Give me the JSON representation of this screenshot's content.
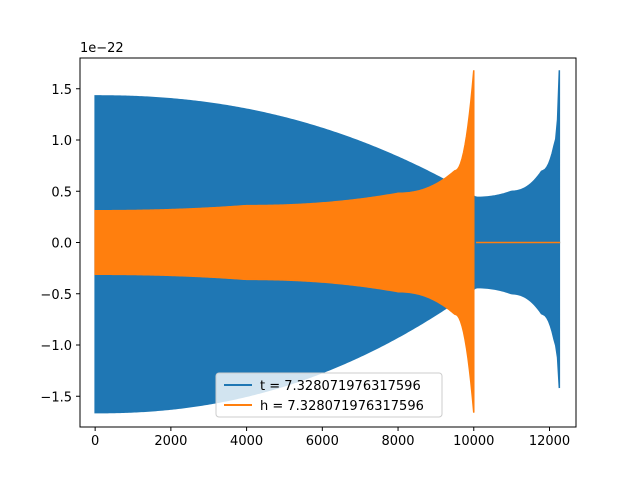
{
  "chart_data": {
    "type": "line",
    "title": "",
    "xlabel": "",
    "ylabel": "",
    "y_offset_label": "1e−22",
    "xlim": [
      -400,
      12700
    ],
    "ylim": [
      -1.8,
      1.8
    ],
    "x_ticks": [
      0,
      2000,
      4000,
      6000,
      8000,
      10000,
      12000
    ],
    "x_tick_labels": [
      "0",
      "2000",
      "4000",
      "6000",
      "8000",
      "10000",
      "12000"
    ],
    "y_ticks": [
      1.5,
      1.0,
      0.5,
      0.0,
      -0.5,
      -1.0,
      -1.5
    ],
    "y_tick_labels": [
      "1.5",
      "1.0",
      "0.5",
      "0.0",
      "−0.5",
      "−1.0",
      "−1.5"
    ],
    "grid": false,
    "legend_position": "lower center",
    "series": [
      {
        "name": "t = 7.328071976317596",
        "color": "#1f77b4",
        "description": "oscillating chirp envelope",
        "envelope": [
          {
            "x": 0,
            "upper": 1.43,
            "lower": -1.66
          },
          {
            "x": 10060,
            "upper": 0.44,
            "lower": -0.44
          },
          {
            "x": 11000,
            "upper": 0.5,
            "lower": -0.5
          },
          {
            "x": 11800,
            "upper": 0.7,
            "lower": -0.7
          },
          {
            "x": 12150,
            "upper": 1.0,
            "lower": -1.0
          },
          {
            "x": 12260,
            "upper": 1.68,
            "lower": -1.42
          }
        ],
        "flat_segment": {
          "x_start": 10060,
          "x_end": 12280,
          "y": 0.0
        }
      },
      {
        "name": "h = 7.328071976317596",
        "color": "#ff7f0e",
        "description": "oscillating chirp envelope",
        "envelope": [
          {
            "x": 0,
            "upper": 0.31,
            "lower": -0.31
          },
          {
            "x": 4000,
            "upper": 0.36,
            "lower": -0.36
          },
          {
            "x": 8000,
            "upper": 0.48,
            "lower": -0.48
          },
          {
            "x": 9500,
            "upper": 0.7,
            "lower": -0.7
          },
          {
            "x": 10000,
            "upper": 1.68,
            "lower": -1.66
          }
        ],
        "flat_segment": {
          "x_start": 10060,
          "x_end": 12280,
          "y": 0.0
        }
      }
    ]
  }
}
